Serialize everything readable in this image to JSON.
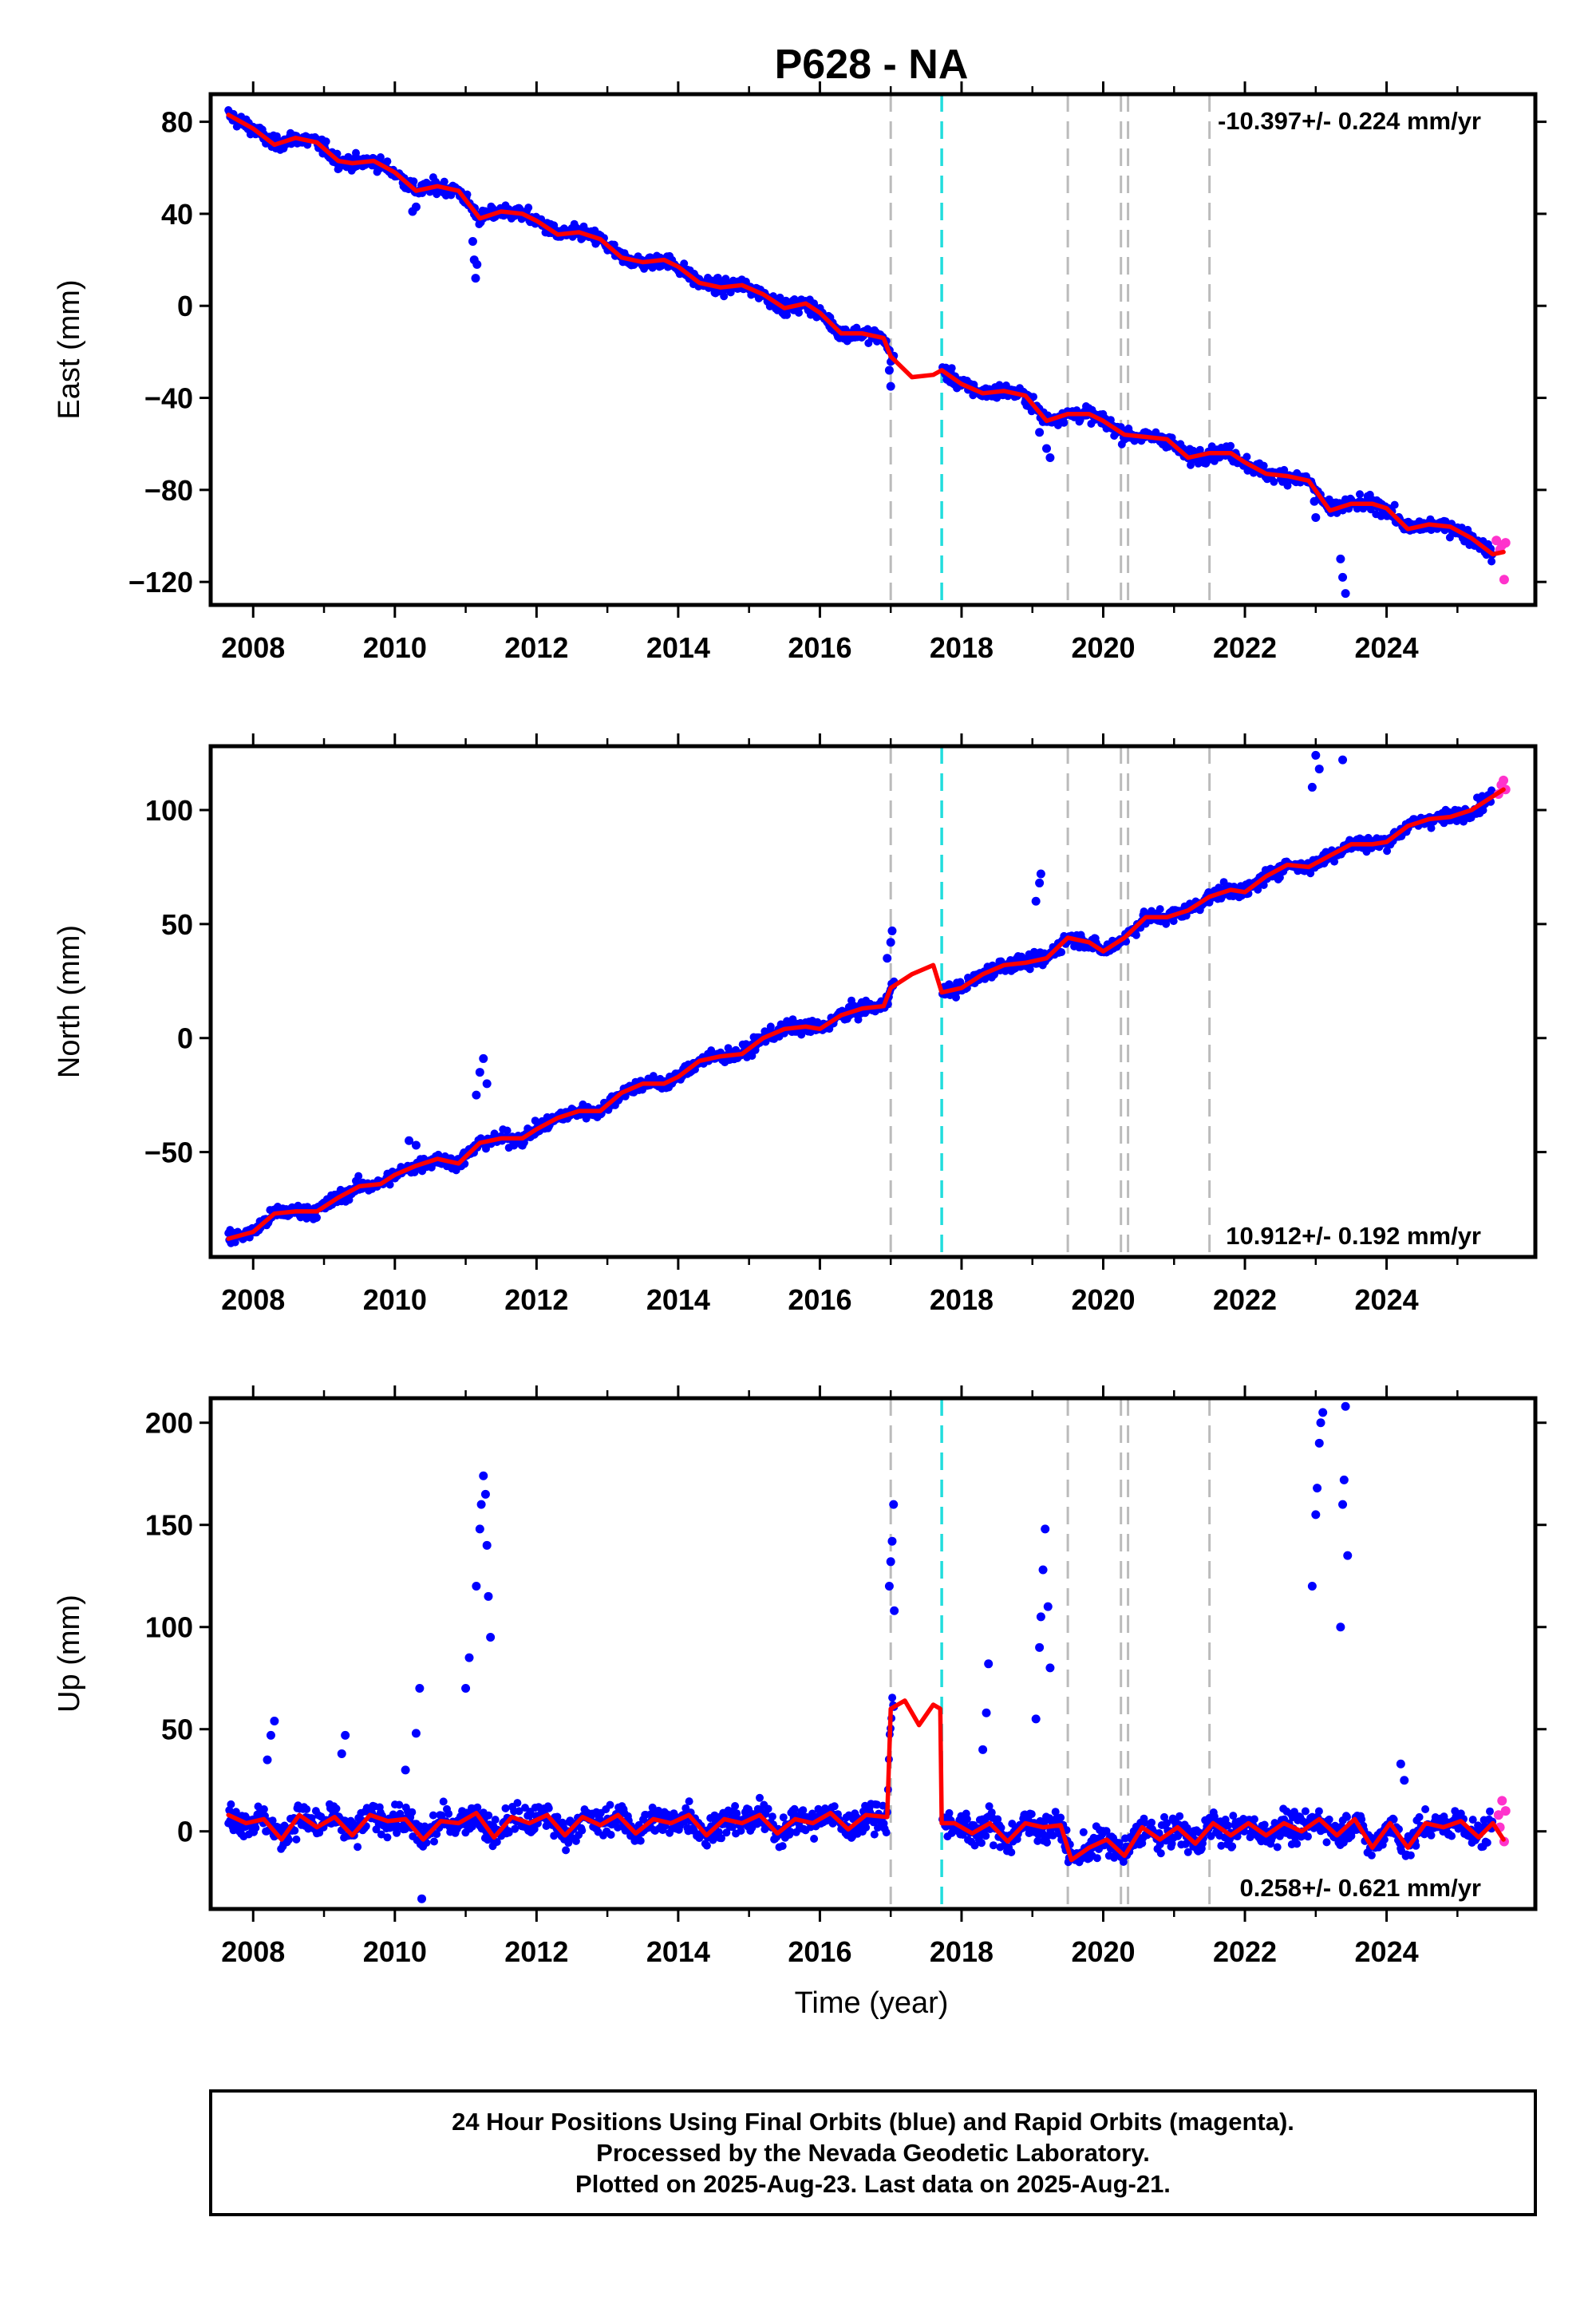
{
  "title": "P628 - NA",
  "xlabel": "Time (year)",
  "footer": {
    "line1": "24 Hour Positions Using Final Orbits (blue) and Rapid Orbits (magenta).",
    "line2": "Processed by the Nevada Geodetic Laboratory.",
    "line3": "Plotted on 2025-Aug-23. Last data on 2025-Aug-21."
  },
  "colors": {
    "final": "#0000ff",
    "rapid": "#ff33cc",
    "model": "#ff0000",
    "event_gray": "#bbbbbb",
    "event_cyan": "#22dddd"
  },
  "chart_data": [
    {
      "type": "scatter",
      "component": "east",
      "ylabel": "East (mm)",
      "rate": "-10.397+/- 0.224 mm/yr",
      "rate_position": "top-right",
      "xlim": [
        2007.4,
        2026.1
      ],
      "ylim": [
        -130,
        92
      ],
      "yticks": [
        80,
        40,
        0,
        -40,
        -80,
        -120
      ],
      "ytick_labels": [
        "80",
        "40",
        "0",
        "−40",
        "−80",
        "−120"
      ],
      "xticks": [
        2008,
        2010,
        2012,
        2014,
        2016,
        2018,
        2020,
        2022,
        2024
      ],
      "xtick_labels": [
        "2008",
        "2010",
        "2012",
        "2014",
        "2016",
        "2018",
        "2020",
        "2022",
        "2024"
      ],
      "events_gray": [
        2017.0,
        2019.5,
        2020.25,
        2020.35,
        2021.5
      ],
      "events_cyan": [
        2017.72
      ],
      "model": {
        "x": [
          2007.65,
          2008.0,
          2008.3,
          2008.6,
          2008.9,
          2009.2,
          2009.4,
          2009.7,
          2010.0,
          2010.3,
          2010.6,
          2010.9,
          2011.2,
          2011.5,
          2011.8,
          2012.0,
          2012.3,
          2012.6,
          2012.9,
          2013.2,
          2013.5,
          2013.8,
          2014.0,
          2014.3,
          2014.6,
          2014.9,
          2015.2,
          2015.5,
          2015.8,
          2016.0,
          2016.3,
          2016.6,
          2016.9,
          2017.0,
          2017.3,
          2017.6,
          2017.72,
          2018.0,
          2018.3,
          2018.6,
          2018.9,
          2019.2,
          2019.5,
          2019.8,
          2020.0,
          2020.3,
          2020.6,
          2020.9,
          2021.2,
          2021.5,
          2021.8,
          2022.0,
          2022.3,
          2022.6,
          2022.9,
          2023.2,
          2023.5,
          2023.8,
          2024.0,
          2024.3,
          2024.6,
          2024.9,
          2025.2,
          2025.5,
          2025.65
        ],
        "y": [
          83,
          77,
          70,
          73,
          71,
          63,
          62,
          63,
          58,
          50,
          52,
          50,
          38,
          41,
          40,
          37,
          31,
          32,
          29,
          21,
          19,
          20,
          17,
          10,
          8,
          9,
          5,
          -1,
          1,
          -3,
          -12,
          -12,
          -14,
          -22,
          -31,
          -30,
          -28,
          -34,
          -38,
          -37,
          -39,
          -50,
          -47,
          -47,
          -50,
          -56,
          -57,
          -58,
          -66,
          -64,
          -64,
          -68,
          -73,
          -74,
          -76,
          -89,
          -86,
          -86,
          -88,
          -97,
          -95,
          -96,
          -101,
          -108,
          -107
        ]
      },
      "scatter": {
        "noise": 2.2,
        "outliers": [
          {
            "x": 2010.25,
            "y": 41
          },
          {
            "x": 2010.3,
            "y": 43
          },
          {
            "x": 2011.1,
            "y": 28
          },
          {
            "x": 2011.12,
            "y": 20
          },
          {
            "x": 2011.14,
            "y": 12
          },
          {
            "x": 2011.16,
            "y": 18
          },
          {
            "x": 2016.98,
            "y": -28
          },
          {
            "x": 2017.0,
            "y": -35
          },
          {
            "x": 2019.1,
            "y": -55
          },
          {
            "x": 2019.2,
            "y": -62
          },
          {
            "x": 2019.25,
            "y": -66
          },
          {
            "x": 2022.98,
            "y": -85
          },
          {
            "x": 2023.0,
            "y": -92
          },
          {
            "x": 2023.35,
            "y": -110
          },
          {
            "x": 2023.38,
            "y": -118
          },
          {
            "x": 2023.42,
            "y": -125
          }
        ],
        "rapid": [
          {
            "x": 2025.55,
            "y": -102
          },
          {
            "x": 2025.6,
            "y": -106
          },
          {
            "x": 2025.63,
            "y": -104
          },
          {
            "x": 2025.66,
            "y": -119
          },
          {
            "x": 2025.68,
            "y": -103
          }
        ]
      }
    },
    {
      "type": "scatter",
      "component": "north",
      "ylabel": "North (mm)",
      "rate": "10.912+/- 0.192 mm/yr",
      "rate_position": "bottom-right",
      "xlim": [
        2007.4,
        2026.1
      ],
      "ylim": [
        -96,
        128
      ],
      "yticks": [
        100,
        50,
        0,
        -50
      ],
      "ytick_labels": [
        "100",
        "50",
        "0",
        "−50"
      ],
      "xticks": [
        2008,
        2010,
        2012,
        2014,
        2016,
        2018,
        2020,
        2022,
        2024
      ],
      "xtick_labels": [
        "2008",
        "2010",
        "2012",
        "2014",
        "2016",
        "2018",
        "2020",
        "2022",
        "2024"
      ],
      "events_gray": [
        2017.0,
        2019.5,
        2020.25,
        2020.35,
        2021.5
      ],
      "events_cyan": [
        2017.72
      ],
      "model": {
        "x": [
          2007.65,
          2008.0,
          2008.3,
          2008.6,
          2008.9,
          2009.2,
          2009.5,
          2009.8,
          2010.0,
          2010.3,
          2010.6,
          2010.9,
          2011.2,
          2011.5,
          2011.8,
          2012.0,
          2012.3,
          2012.6,
          2012.9,
          2013.2,
          2013.5,
          2013.8,
          2014.0,
          2014.3,
          2014.6,
          2014.9,
          2015.2,
          2015.5,
          2015.8,
          2016.0,
          2016.3,
          2016.6,
          2016.9,
          2017.0,
          2017.3,
          2017.6,
          2017.72,
          2018.0,
          2018.3,
          2018.6,
          2018.9,
          2019.2,
          2019.5,
          2019.8,
          2020.0,
          2020.3,
          2020.6,
          2020.9,
          2021.2,
          2021.5,
          2021.8,
          2022.0,
          2022.3,
          2022.6,
          2022.9,
          2023.2,
          2023.5,
          2023.8,
          2024.0,
          2024.3,
          2024.6,
          2024.9,
          2025.2,
          2025.5,
          2025.65
        ],
        "y": [
          -88,
          -85,
          -77,
          -76,
          -76,
          -70,
          -65,
          -64,
          -60,
          -56,
          -53,
          -55,
          -46,
          -44,
          -44,
          -40,
          -35,
          -32,
          -32,
          -24,
          -20,
          -20,
          -17,
          -10,
          -8,
          -7,
          0,
          4,
          5,
          4,
          10,
          13,
          14,
          22,
          28,
          32,
          20,
          22,
          28,
          32,
          33,
          35,
          44,
          42,
          38,
          44,
          53,
          53,
          56,
          62,
          65,
          64,
          71,
          76,
          75,
          80,
          85,
          85,
          86,
          93,
          96,
          97,
          100,
          106,
          109
        ]
      },
      "scatter": {
        "noise": 2.2,
        "outliers": [
          {
            "x": 2010.2,
            "y": -45
          },
          {
            "x": 2010.3,
            "y": -47
          },
          {
            "x": 2011.15,
            "y": -25
          },
          {
            "x": 2011.2,
            "y": -15
          },
          {
            "x": 2011.25,
            "y": -9
          },
          {
            "x": 2011.3,
            "y": -20
          },
          {
            "x": 2016.95,
            "y": 35
          },
          {
            "x": 2017.0,
            "y": 42
          },
          {
            "x": 2017.02,
            "y": 47
          },
          {
            "x": 2019.05,
            "y": 60
          },
          {
            "x": 2019.1,
            "y": 68
          },
          {
            "x": 2019.12,
            "y": 72
          },
          {
            "x": 2022.95,
            "y": 110
          },
          {
            "x": 2023.0,
            "y": 124
          },
          {
            "x": 2023.05,
            "y": 118
          },
          {
            "x": 2023.38,
            "y": 122
          }
        ],
        "rapid": [
          {
            "x": 2025.58,
            "y": 107
          },
          {
            "x": 2025.62,
            "y": 111
          },
          {
            "x": 2025.65,
            "y": 113
          },
          {
            "x": 2025.68,
            "y": 109
          }
        ]
      }
    },
    {
      "type": "scatter",
      "component": "up",
      "ylabel": "Up (mm)",
      "rate": "0.258+/- 0.621 mm/yr",
      "rate_position": "bottom-right",
      "xlim": [
        2007.4,
        2026.1
      ],
      "ylim": [
        -38,
        212
      ],
      "yticks": [
        200,
        150,
        100,
        50,
        0
      ],
      "ytick_labels": [
        "200",
        "150",
        "100",
        "50",
        "0"
      ],
      "xticks": [
        2008,
        2010,
        2012,
        2014,
        2016,
        2018,
        2020,
        2022,
        2024
      ],
      "xtick_labels": [
        "2008",
        "2010",
        "2012",
        "2014",
        "2016",
        "2018",
        "2020",
        "2022",
        "2024"
      ],
      "events_gray": [
        2017.0,
        2019.5,
        2020.25,
        2020.35,
        2021.5
      ],
      "events_cyan": [
        2017.72
      ],
      "model": {
        "x": [
          2007.65,
          2007.9,
          2008.15,
          2008.4,
          2008.65,
          2008.9,
          2009.15,
          2009.4,
          2009.65,
          2009.9,
          2010.15,
          2010.4,
          2010.65,
          2010.9,
          2011.15,
          2011.4,
          2011.65,
          2011.9,
          2012.15,
          2012.4,
          2012.65,
          2012.9,
          2013.15,
          2013.4,
          2013.65,
          2013.9,
          2014.15,
          2014.4,
          2014.65,
          2014.9,
          2015.15,
          2015.4,
          2015.65,
          2015.9,
          2016.15,
          2016.4,
          2016.65,
          2016.95,
          2017.0,
          2017.2,
          2017.4,
          2017.6,
          2017.7,
          2017.72,
          2017.9,
          2018.15,
          2018.4,
          2018.65,
          2018.9,
          2019.15,
          2019.4,
          2019.55,
          2019.8,
          2020.05,
          2020.3,
          2020.55,
          2020.8,
          2021.05,
          2021.3,
          2021.55,
          2021.8,
          2022.05,
          2022.3,
          2022.55,
          2022.8,
          2023.05,
          2023.3,
          2023.55,
          2023.8,
          2024.05,
          2024.3,
          2024.55,
          2024.8,
          2025.05,
          2025.3,
          2025.5,
          2025.65
        ],
        "y": [
          8,
          4,
          6,
          -4,
          8,
          2,
          7,
          -2,
          8,
          5,
          6,
          -4,
          5,
          4,
          9,
          -3,
          7,
          4,
          8,
          -2,
          7,
          3,
          8,
          -1,
          6,
          4,
          8,
          -2,
          6,
          4,
          8,
          -1,
          6,
          4,
          9,
          1,
          8,
          7,
          60,
          64,
          52,
          62,
          60,
          4,
          4,
          -1,
          4,
          -5,
          4,
          2,
          3,
          -14,
          -8,
          -4,
          -12,
          2,
          -4,
          2,
          -6,
          4,
          -2,
          4,
          -2,
          4,
          0,
          6,
          -2,
          6,
          -8,
          4,
          -8,
          4,
          2,
          5,
          -3,
          4,
          -4
        ]
      },
      "scatter": {
        "noise": 5.0,
        "outliers": [
          {
            "x": 2008.2,
            "y": 35
          },
          {
            "x": 2008.25,
            "y": 47
          },
          {
            "x": 2008.3,
            "y": 54
          },
          {
            "x": 2009.25,
            "y": 38
          },
          {
            "x": 2009.3,
            "y": 47
          },
          {
            "x": 2010.15,
            "y": 30
          },
          {
            "x": 2010.3,
            "y": 48
          },
          {
            "x": 2010.35,
            "y": 70
          },
          {
            "x": 2010.38,
            "y": -33
          },
          {
            "x": 2011.0,
            "y": 70
          },
          {
            "x": 2011.05,
            "y": 85
          },
          {
            "x": 2011.15,
            "y": 120
          },
          {
            "x": 2011.2,
            "y": 148
          },
          {
            "x": 2011.22,
            "y": 160
          },
          {
            "x": 2011.25,
            "y": 174
          },
          {
            "x": 2011.28,
            "y": 165
          },
          {
            "x": 2011.3,
            "y": 140
          },
          {
            "x": 2011.32,
            "y": 115
          },
          {
            "x": 2011.35,
            "y": 95
          },
          {
            "x": 2016.98,
            "y": 120
          },
          {
            "x": 2017.0,
            "y": 132
          },
          {
            "x": 2017.02,
            "y": 142
          },
          {
            "x": 2017.04,
            "y": 160
          },
          {
            "x": 2017.05,
            "y": 108
          },
          {
            "x": 2018.3,
            "y": 40
          },
          {
            "x": 2018.35,
            "y": 58
          },
          {
            "x": 2018.38,
            "y": 82
          },
          {
            "x": 2019.05,
            "y": 55
          },
          {
            "x": 2019.1,
            "y": 90
          },
          {
            "x": 2019.12,
            "y": 105
          },
          {
            "x": 2019.15,
            "y": 128
          },
          {
            "x": 2019.18,
            "y": 148
          },
          {
            "x": 2019.22,
            "y": 110
          },
          {
            "x": 2019.25,
            "y": 80
          },
          {
            "x": 2022.95,
            "y": 120
          },
          {
            "x": 2023.0,
            "y": 155
          },
          {
            "x": 2023.02,
            "y": 168
          },
          {
            "x": 2023.05,
            "y": 190
          },
          {
            "x": 2023.07,
            "y": 200
          },
          {
            "x": 2023.1,
            "y": 205
          },
          {
            "x": 2023.35,
            "y": 100
          },
          {
            "x": 2023.38,
            "y": 160
          },
          {
            "x": 2023.4,
            "y": 172
          },
          {
            "x": 2023.42,
            "y": 208
          },
          {
            "x": 2023.45,
            "y": 135
          },
          {
            "x": 2024.2,
            "y": 33
          },
          {
            "x": 2024.25,
            "y": 25
          }
        ],
        "rapid": [
          {
            "x": 2025.58,
            "y": 8
          },
          {
            "x": 2025.6,
            "y": 2
          },
          {
            "x": 2025.63,
            "y": 15
          },
          {
            "x": 2025.66,
            "y": -5
          },
          {
            "x": 2025.68,
            "y": 10
          }
        ]
      }
    }
  ]
}
